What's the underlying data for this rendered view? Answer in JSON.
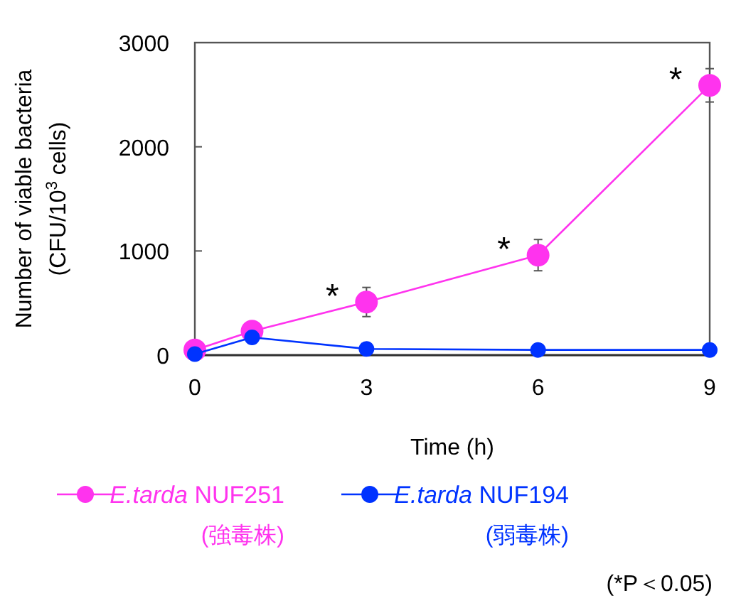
{
  "chart_data": {
    "type": "line",
    "xlabel": "Time (h)",
    "ylabel": "Number of viable bacteria\n(CFU/10$^{3}$ cells)",
    "xlim": [
      0,
      9
    ],
    "xticks": [
      0,
      3,
      6,
      9
    ],
    "ylim": [
      0,
      3000
    ],
    "yticks": [
      0,
      1000,
      2000,
      3000
    ],
    "grid": false,
    "legend": "bottom",
    "marker": "circle",
    "line_style": "solid",
    "series": [
      {
        "name": "E.tarda NUF251\n(強毒株)",
        "color": "#ff33ee",
        "x": [
          0,
          1,
          3,
          6,
          9
        ],
        "values": [
          50,
          230,
          510,
          960,
          2590
        ],
        "errors": [
          null,
          null,
          140,
          150,
          160
        ]
      },
      {
        "name": "E.tarda NUF194\n(弱毒株)",
        "color": "#0033ff",
        "x": [
          0,
          1,
          3,
          6,
          9
        ],
        "values": [
          10,
          170,
          60,
          50,
          50
        ]
      }
    ],
    "annotations": [
      {
        "text": "*",
        "x": 3,
        "y": 510
      },
      {
        "text": "*",
        "x": 6,
        "y": 960
      },
      {
        "text": "*",
        "x": 9,
        "y": 2590
      },
      "(*P＜0.05)"
    ]
  }
}
